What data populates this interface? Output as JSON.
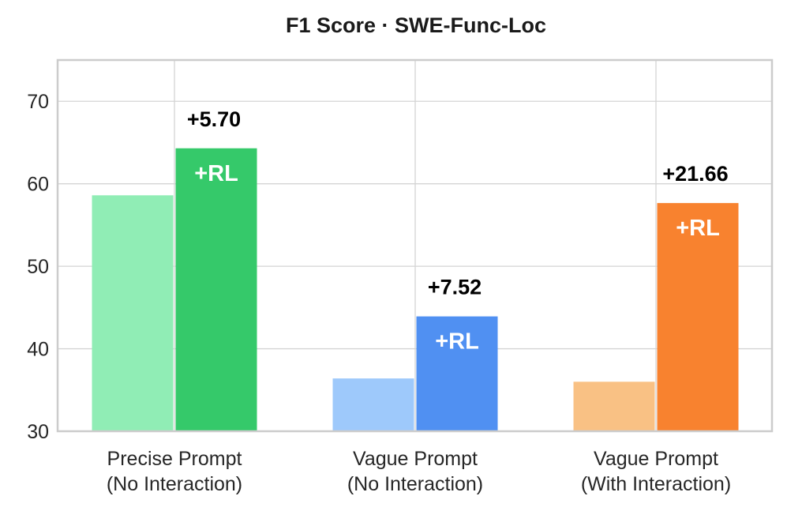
{
  "chart_data": {
    "type": "bar",
    "title": "F1 Score · SWE-Func-Loc",
    "xlabel": "",
    "ylabel": "",
    "ylim": [
      30,
      75
    ],
    "yticks": [
      30,
      40,
      50,
      60,
      70
    ],
    "grid": true,
    "categories": [
      {
        "line1": "Precise Prompt",
        "line2": "(No Interaction)"
      },
      {
        "line1": "Vague Prompt",
        "line2": "(No Interaction)"
      },
      {
        "line1": "Vague Prompt",
        "line2": "(With Interaction)"
      }
    ],
    "groups": [
      {
        "base": 58.6,
        "rl": 64.3,
        "delta": "+5.70",
        "rl_label": "+RL",
        "base_color": "#90edb5",
        "rl_color": "#35c96a"
      },
      {
        "base": 36.4,
        "rl": 43.92,
        "delta": "+7.52",
        "rl_label": "+RL",
        "base_color": "#9ec9fb",
        "rl_color": "#5090f2"
      },
      {
        "base": 36.0,
        "rl": 57.66,
        "delta": "+21.66",
        "rl_label": "+RL",
        "base_color": "#f9c184",
        "rl_color": "#f8822f"
      }
    ]
  }
}
